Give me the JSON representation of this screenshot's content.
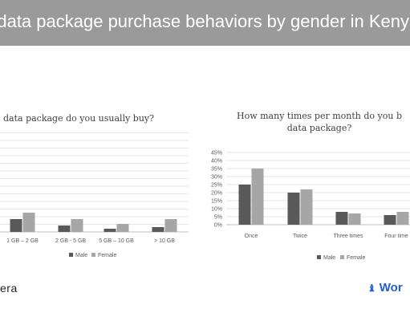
{
  "header": {
    "title": "e data package purchase behaviors by gender in Keny"
  },
  "footer": {
    "left_text": "era",
    "right_text": "Wor",
    "right_icon": "logo-icon"
  },
  "colors": {
    "banner": "#9a9a9a",
    "male": "#595959",
    "female": "#a6a6a6"
  },
  "chart_data": [
    {
      "type": "bar",
      "title": "data package do you usually buy?",
      "categories": [
        "1 GB – 2 GB",
        "2 GB - 5 GB",
        "5 GB – 10 GB",
        "> 10 GB"
      ],
      "series": [
        {
          "name": "Male",
          "values": [
            0.08,
            0.04,
            0.02,
            0.03
          ]
        },
        {
          "name": "Female",
          "values": [
            0.12,
            0.08,
            0.05,
            0.08
          ]
        }
      ],
      "legend": [
        "Male",
        "Female"
      ],
      "legend_position": "bottom",
      "grid": true
    },
    {
      "type": "bar",
      "title": [
        "How many times per month do you b",
        "data package?"
      ],
      "categories": [
        "Once",
        "Twice",
        "Three times",
        "Four time"
      ],
      "series": [
        {
          "name": "Male",
          "values": [
            25,
            20,
            8,
            6
          ]
        },
        {
          "name": "Female",
          "values": [
            35,
            22,
            7,
            8
          ]
        }
      ],
      "y_ticks": [
        "0%",
        "5%",
        "10%",
        "15%",
        "20%",
        "25%",
        "30%",
        "35%",
        "40%",
        "45%"
      ],
      "ylim": [
        0,
        45
      ],
      "legend": [
        "Male",
        "Female"
      ],
      "legend_position": "bottom",
      "grid": true
    }
  ]
}
